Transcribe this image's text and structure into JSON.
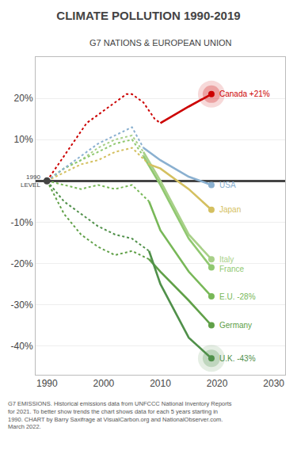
{
  "chart_data": {
    "type": "line",
    "title": "CLIMATE POLLUTION 1990-2019",
    "subtitle": "G7 NATIONS & EUROPEAN UNION",
    "footnote": "G7 EMISSIONS. Historical emissions data from UNFCCC National Inventory Reports\nfor 2021. To better show trends the chart shows data for each 5 years starting in\n1990. CHART by Barry Saxifrage at VisualCarbon.org and NationalObserver.com.\nMarch 2022.",
    "xlim": [
      1988,
      2032
    ],
    "ylim": [
      -47,
      30
    ],
    "xticks": [
      1990,
      2000,
      2010,
      2020,
      2030
    ],
    "yticks": [
      {
        "value": -40,
        "label": "-40%"
      },
      {
        "value": -30,
        "label": "-30%"
      },
      {
        "value": -20,
        "label": "-20%"
      },
      {
        "value": -10,
        "label": "-10%"
      },
      {
        "value": 10,
        "label": "10%"
      },
      {
        "value": 20,
        "label": "20%"
      }
    ],
    "grid": "y",
    "annotations": [
      {
        "text": "1990\nLEVEL",
        "x": 1990,
        "y": 0
      }
    ],
    "series": [
      {
        "name": "Italy",
        "color": "#a8d088",
        "line_style": "dotted",
        "x": [
          1990,
          1993,
          1996,
          1999,
          2002,
          2005,
          2007
        ],
        "values": [
          0,
          3,
          5,
          8,
          10,
          11,
          7
        ]
      },
      {
        "name": "Italy",
        "color": "#a8d088",
        "line_style": "solid",
        "marker": "end",
        "x": [
          2007,
          2010,
          2015,
          2019
        ],
        "values": [
          7,
          0,
          -13,
          -19
        ]
      },
      {
        "name": "France",
        "color": "#90c870",
        "line_style": "dotted",
        "x": [
          1990,
          1993,
          1996,
          1999,
          2002,
          2005,
          2007
        ],
        "values": [
          0,
          3,
          5,
          7,
          9,
          10,
          6
        ]
      },
      {
        "name": "France",
        "color": "#90c870",
        "line_style": "solid",
        "marker": "end",
        "x": [
          2007,
          2010,
          2015,
          2019
        ],
        "values": [
          6,
          -1,
          -14,
          -21
        ]
      },
      {
        "name": "E.U. -28%",
        "color": "#78b858",
        "line_style": "dotted",
        "x": [
          1990,
          1993,
          1996,
          1999,
          2002,
          2005,
          2008
        ],
        "values": [
          0,
          -1,
          -2,
          -1,
          -2,
          -1,
          -5
        ]
      },
      {
        "name": "E.U. -28%",
        "color": "#78b858",
        "line_style": "solid",
        "marker": "end",
        "x": [
          2008,
          2010,
          2015,
          2019
        ],
        "values": [
          -5,
          -12,
          -22,
          -28
        ]
      },
      {
        "name": "Germany",
        "color": "#60a048",
        "line_style": "dotted",
        "x": [
          1990,
          1993,
          1996,
          1999,
          2002,
          2005,
          2008
        ],
        "values": [
          0,
          -8,
          -13,
          -16,
          -18,
          -17,
          -19
        ]
      },
      {
        "name": "Germany",
        "color": "#60a048",
        "line_style": "solid",
        "marker": "end",
        "x": [
          2008,
          2010,
          2015,
          2019
        ],
        "values": [
          -19,
          -22,
          -29,
          -35
        ]
      },
      {
        "name": "U.K. -43%",
        "color": "#50904a",
        "line_style": "dotted",
        "x": [
          1990,
          1993,
          1996,
          1999,
          2002,
          2005,
          2008
        ],
        "values": [
          0,
          -5,
          -8,
          -11,
          -13,
          -14,
          -17
        ]
      },
      {
        "name": "U.K. -43%",
        "color": "#50904a",
        "line_style": "solid",
        "marker": "glow",
        "x": [
          2008,
          2010,
          2015,
          2019
        ],
        "values": [
          -17,
          -25,
          -38,
          -43
        ]
      },
      {
        "name": "Japan",
        "color": "#d4c060",
        "line_style": "dotted",
        "x": [
          1990,
          1993,
          1996,
          1999,
          2002,
          2005,
          2008
        ],
        "values": [
          0,
          2,
          4,
          5,
          7,
          8,
          4
        ]
      },
      {
        "name": "Japan",
        "color": "#d4c060",
        "line_style": "solid",
        "marker": "end",
        "x": [
          2008,
          2010,
          2015,
          2019
        ],
        "values": [
          4,
          3,
          -2,
          -7
        ]
      },
      {
        "name": "USA",
        "color": "#8ab0d0",
        "line_style": "dotted",
        "x": [
          1990,
          1993,
          1996,
          1999,
          2002,
          2005,
          2007
        ],
        "values": [
          0,
          3,
          6,
          9,
          11,
          13,
          8
        ]
      },
      {
        "name": "USA",
        "color": "#8ab0d0",
        "line_style": "solid",
        "marker": "end",
        "x": [
          2007,
          2010,
          2015,
          2019
        ],
        "values": [
          8,
          5,
          1,
          -1
        ]
      },
      {
        "name": "Canada +21%",
        "color": "#cc0000",
        "line_style": "dotted",
        "x": [
          1990,
          1991,
          1992,
          1993,
          1994,
          1995,
          1996,
          1997,
          1998,
          1999,
          2000,
          2001,
          2002,
          2003,
          2004,
          2005,
          2006,
          2007,
          2008,
          2009,
          2010
        ],
        "values": [
          0,
          2,
          4,
          6,
          8,
          10,
          12,
          14,
          15,
          16,
          17,
          18,
          19,
          20,
          21,
          21,
          20,
          19,
          17,
          15,
          14
        ]
      },
      {
        "name": "Canada +21%",
        "color": "#cc0000",
        "line_style": "solid",
        "marker": "glow",
        "x": [
          2010,
          2015,
          2019
        ],
        "values": [
          14,
          18,
          21
        ]
      }
    ]
  }
}
